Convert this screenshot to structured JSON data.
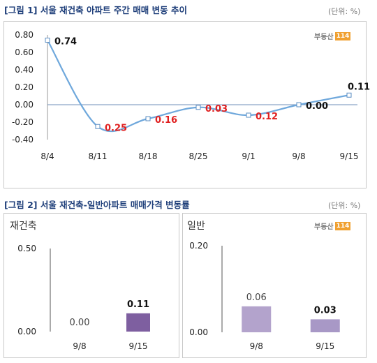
{
  "chart_data": [
    {
      "type": "line",
      "title": "[그림 1] 서울 재건축 아파트 주간 매매 변동 추이",
      "unit_label": "(단위: %)",
      "logo": {
        "text": "부동산",
        "num": "114"
      },
      "categories": [
        "8/4",
        "8/11",
        "8/18",
        "8/25",
        "9/1",
        "9/8",
        "9/15"
      ],
      "values": [
        0.74,
        -0.25,
        -0.16,
        -0.03,
        -0.12,
        0.0,
        0.11
      ],
      "data_labels": [
        "0.74",
        "0.25",
        "0.16",
        "0.03",
        "0.12",
        "0.00",
        "0.11"
      ],
      "ylim": [
        -0.4,
        0.8
      ],
      "yticks": [
        "0.80",
        "0.60",
        "0.40",
        "0.20",
        "0.00",
        "-0.20",
        "-0.40"
      ],
      "colors": {
        "line": "#6fa8dc",
        "negative_label": "#e02020",
        "positive_label": "#111111"
      }
    },
    {
      "type": "bar",
      "title": "[그림 2] 서울 재건축-일반아파트 매매가격 변동률",
      "unit_label": "(단위: %)",
      "panels": [
        {
          "label": "재건축",
          "categories": [
            "9/8",
            "9/15"
          ],
          "values": [
            0.0,
            0.11
          ],
          "data_labels": [
            "0.00",
            "0.11"
          ],
          "ylim": [
            0,
            0.5
          ],
          "yticks": [
            "0.50",
            "0.00"
          ],
          "colors": [
            "#c9b8d8",
            "#7e5fa0"
          ]
        },
        {
          "label": "일반",
          "logo": {
            "text": "부동산",
            "num": "114"
          },
          "categories": [
            "9/8",
            "9/15"
          ],
          "values": [
            0.06,
            0.03
          ],
          "data_labels": [
            "0.06",
            "0.03"
          ],
          "ylim": [
            0,
            0.2
          ],
          "yticks": [
            "0.20",
            "0.00"
          ],
          "colors": [
            "#b3a3cc",
            "#a898c6"
          ]
        }
      ]
    }
  ]
}
